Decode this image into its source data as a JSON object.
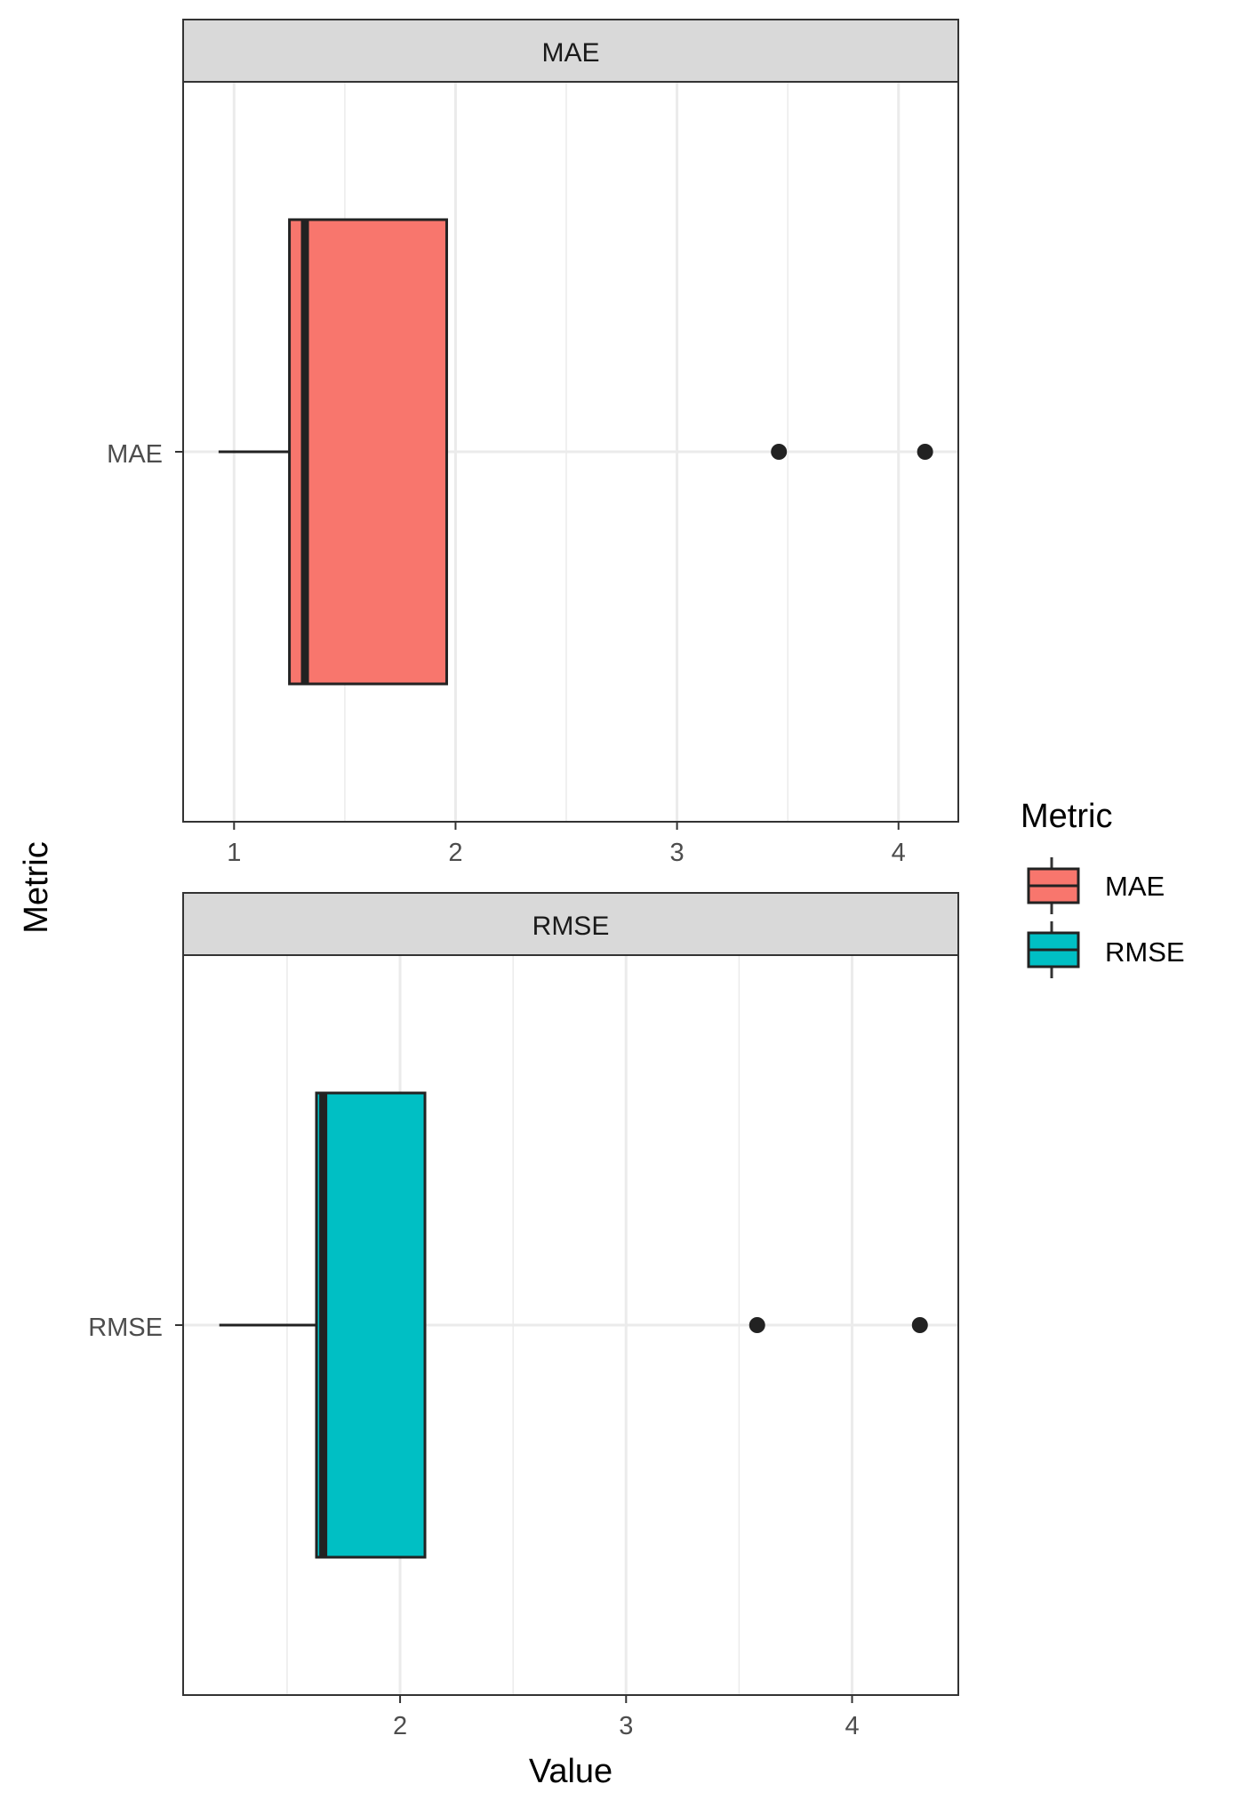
{
  "chart_data": {
    "type": "boxplot",
    "facet_by": "Metric",
    "xlabel": "Value",
    "ylabel": "Metric",
    "legend": {
      "title": "Metric",
      "placement": "right",
      "entries": [
        {
          "label": "MAE",
          "color": "#F8766D"
        },
        {
          "label": "RMSE",
          "color": "#00BFC4"
        }
      ]
    },
    "grid": true,
    "panels": [
      {
        "strip": "MAE",
        "category": "MAE",
        "color": "#F8766D",
        "xlim": [
          0.77,
          4.27
        ],
        "xticks": [
          "1",
          "2",
          "3",
          "4"
        ],
        "xtick_values": [
          1,
          2,
          3,
          4
        ],
        "box": {
          "whisker_low": 0.93,
          "q1": 1.25,
          "median": 1.32,
          "q3": 1.96,
          "whisker_high": 1.96,
          "outliers": [
            3.46,
            4.12
          ]
        }
      },
      {
        "strip": "RMSE",
        "category": "RMSE",
        "color": "#00BFC4",
        "xlim": [
          1.04,
          4.47
        ],
        "xticks": [
          "2",
          "3",
          "4"
        ],
        "xtick_values": [
          2,
          3,
          4
        ],
        "box": {
          "whisker_low": 1.2,
          "q1": 1.63,
          "median": 1.66,
          "q3": 2.11,
          "whisker_high": 2.11,
          "outliers": [
            3.58,
            4.3
          ]
        }
      }
    ]
  }
}
